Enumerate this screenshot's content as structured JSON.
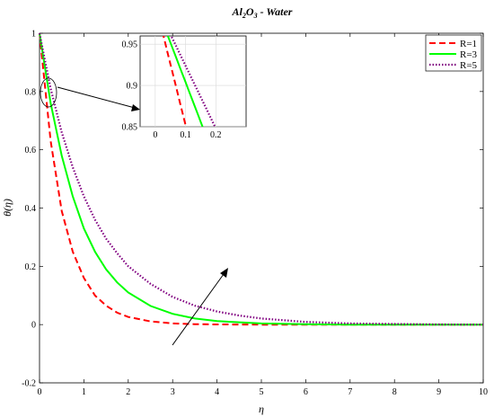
{
  "chart_data": {
    "type": "line",
    "title": "Al2O3 - Water",
    "title_parts": {
      "al": "Al",
      "sub2": "2",
      "o": "O",
      "sub3": "3",
      "rest": " - Water"
    },
    "xlabel": "η",
    "ylabel": "θ(η)",
    "xlim": [
      0,
      10
    ],
    "ylim": [
      -0.2,
      1
    ],
    "x_ticks": [
      "0",
      "1",
      "2",
      "3",
      "4",
      "5",
      "6",
      "7",
      "8",
      "9",
      "10"
    ],
    "y_ticks": [
      "-0.2",
      "0",
      "0.2",
      "0.4",
      "0.6",
      "0.8",
      "1"
    ],
    "grid": false,
    "legend_position": "top-right",
    "series": [
      {
        "name": "R=1",
        "color": "#ff0000",
        "style": "dashed",
        "x": [
          0,
          0.25,
          0.5,
          0.75,
          1,
          1.25,
          1.5,
          1.75,
          2,
          2.5,
          3,
          3.5,
          4,
          5,
          6,
          7,
          8,
          9,
          10
        ],
        "y": [
          1,
          0.63,
          0.39,
          0.25,
          0.16,
          0.1,
          0.065,
          0.041,
          0.026,
          0.011,
          0.004,
          0.0015,
          0.0006,
          0,
          0,
          0,
          0,
          0,
          0
        ]
      },
      {
        "name": "R=3",
        "color": "#00ff00",
        "style": "solid",
        "x": [
          0,
          0.25,
          0.5,
          0.75,
          1,
          1.25,
          1.5,
          1.75,
          2,
          2.5,
          3,
          3.5,
          4,
          5,
          6,
          7,
          8,
          9,
          10
        ],
        "y": [
          1,
          0.76,
          0.58,
          0.44,
          0.33,
          0.25,
          0.19,
          0.145,
          0.11,
          0.064,
          0.037,
          0.021,
          0.012,
          0.004,
          0.001,
          0,
          0,
          0,
          0
        ]
      },
      {
        "name": "R=5",
        "color": "#800080",
        "style": "dotted",
        "x": [
          0,
          0.25,
          0.5,
          0.75,
          1,
          1.25,
          1.5,
          1.75,
          2,
          2.5,
          3,
          3.5,
          4,
          4.5,
          5,
          6,
          7,
          8,
          9,
          10
        ],
        "y": [
          1,
          0.81,
          0.66,
          0.54,
          0.44,
          0.36,
          0.295,
          0.245,
          0.2,
          0.14,
          0.095,
          0.065,
          0.045,
          0.031,
          0.021,
          0.009,
          0.004,
          0.002,
          0.0005,
          0
        ]
      }
    ],
    "inset": {
      "xlim": [
        -0.05,
        0.3
      ],
      "ylim": [
        0.85,
        0.96
      ],
      "x_ticks": [
        "0",
        "0.1",
        "0.2"
      ],
      "y_ticks": [
        "0.85",
        "0.9",
        "0.95"
      ],
      "grid": true
    }
  }
}
